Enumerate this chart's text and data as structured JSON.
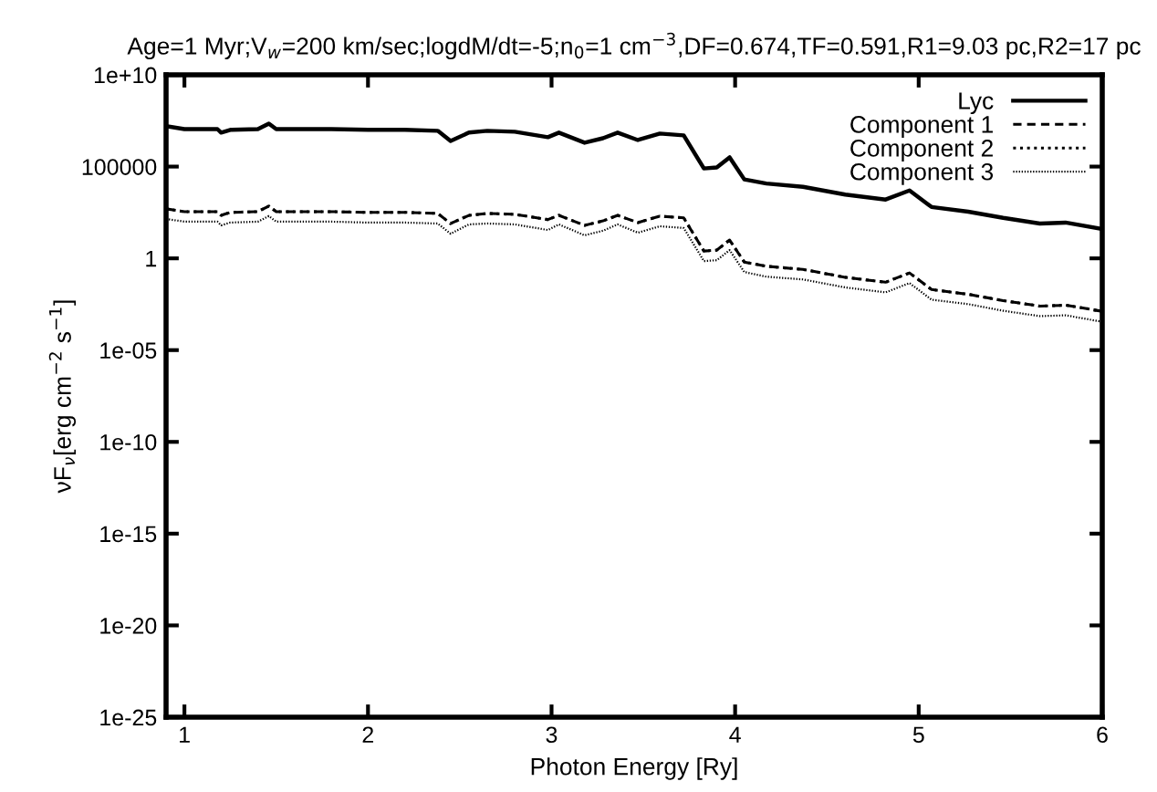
{
  "chart_data": {
    "type": "line",
    "title": "Age=1 Myr;V$_{w}$=200 km/sec;logdM/dt=-5;n$_{0}$=1 cm$^{−3}$,DF=0.674,TF=0.591,R1=9.03 pc,R2=17 pc",
    "xlabel": "Photon Energy [Ry]",
    "ylabel": "νF$_{ν}$[erg cm$^{−2}$ s$^{−1}$]",
    "x": [
      0.9,
      1.0,
      1.18,
      1.2,
      1.25,
      1.4,
      1.46,
      1.5,
      1.8,
      2.0,
      2.2,
      2.38,
      2.45,
      2.55,
      2.65,
      2.8,
      2.98,
      3.04,
      3.18,
      3.28,
      3.36,
      3.47,
      3.59,
      3.72,
      3.83,
      3.9,
      3.97,
      4.05,
      4.17,
      4.37,
      4.6,
      4.82,
      4.95,
      5.07,
      5.27,
      5.46,
      5.66,
      5.8,
      6.0
    ],
    "series": [
      {
        "name": "Lyc",
        "color": "#000000",
        "line_style": "solid",
        "values": [
          16000000.0,
          11000000.0,
          11000000.0,
          7100000.0,
          10000000.0,
          11000000.0,
          22000000.0,
          11000000.0,
          11000000.0,
          10000000.0,
          10000000.0,
          8900000.0,
          2500000.0,
          7100000.0,
          8900000.0,
          7900000.0,
          4000000.0,
          7100000.0,
          2000000.0,
          3500000.0,
          7100000.0,
          2800000.0,
          6300000.0,
          5000000.0,
          79000.0,
          89000.0,
          320000.0,
          20000.0,
          12000.0,
          7900.0,
          3000.0,
          1600.0,
          5000.0,
          630,
          350,
          160,
          79,
          89,
          40
        ]
      },
      {
        "name": "Component 1",
        "color": "#000000",
        "line_style": "dashed",
        "values": [
          500,
          350,
          350,
          220,
          320,
          350,
          710,
          350,
          350,
          320,
          320,
          280,
          79,
          220,
          280,
          250,
          130,
          220,
          63,
          110,
          220,
          89,
          200,
          160,
          2.5,
          2.8,
          10,
          0.63,
          0.37,
          0.25,
          0.093,
          0.05,
          0.16,
          0.02,
          0.011,
          0.005,
          0.0025,
          0.0028,
          0.0013
        ]
      },
      {
        "name": "Component 2",
        "color": "#000000",
        "line_style": "dotted",
        "values": [
          500,
          350,
          350,
          220,
          320,
          350,
          710,
          350,
          350,
          320,
          320,
          280,
          79,
          220,
          280,
          250,
          130,
          220,
          63,
          110,
          220,
          89,
          200,
          160,
          2.5,
          2.8,
          10,
          0.63,
          0.37,
          0.25,
          0.093,
          0.05,
          0.16,
          0.02,
          0.011,
          0.005,
          0.0025,
          0.0028,
          0.0013
        ]
      },
      {
        "name": "Component 3",
        "color": "#000000",
        "line_style": "dotted",
        "values": [
          140,
          100,
          100,
          63,
          89,
          100,
          200,
          100,
          100,
          89,
          89,
          79,
          22,
          71,
          79,
          71,
          35,
          71,
          18,
          32,
          71,
          25,
          56,
          45,
          0.71,
          0.79,
          2.8,
          0.18,
          0.1,
          0.071,
          0.026,
          0.014,
          0.045,
          0.0056,
          0.0032,
          0.0014,
          0.00071,
          0.00079,
          0.00035
        ]
      }
    ],
    "log": "y",
    "xlim": [
      0.9,
      6
    ],
    "xticks": [
      1,
      2,
      3,
      4,
      5,
      6
    ],
    "ylim": [
      1e-25,
      10000000000.0
    ],
    "yticks": [
      {
        "value": 10000000000.0,
        "label": "1e+10"
      },
      {
        "value": 100000.0,
        "label": "100000"
      },
      1,
      {
        "value": 1e-05,
        "label": "1e-05"
      },
      {
        "value": 1e-10,
        "label": "1e-10"
      },
      {
        "value": 1e-15,
        "label": "1e-15"
      },
      {
        "value": 1e-20,
        "label": "1e-20"
      },
      {
        "value": 1e-25,
        "label": "1e-25"
      }
    ],
    "grid": false,
    "legend": "top right"
  }
}
